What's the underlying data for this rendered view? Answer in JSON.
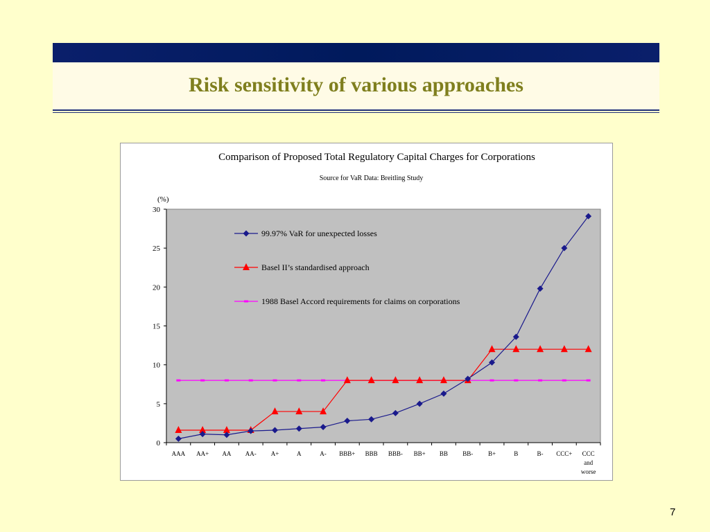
{
  "slide": {
    "title": "Risk sensitivity of various approaches",
    "page_number": "7"
  },
  "colors": {
    "header_bar": "#0a1f6b",
    "title_text": "#7f7f1e",
    "background": "#ffffcc",
    "plot_area": "#c0c0c0"
  },
  "chart_data": {
    "type": "line",
    "title": "Comparison of Proposed Total Regulatory Capital Charges for Corporations",
    "subtitle": "Source for VaR Data: Breitling Study",
    "ylabel": "(%)",
    "xlabel": "",
    "ylim": [
      0,
      30
    ],
    "yticks": [
      0,
      5,
      10,
      15,
      20,
      25,
      30
    ],
    "grid": false,
    "legend_position": "top-left inside plot",
    "categories": [
      "AAA",
      "AA+",
      "AA",
      "AA-",
      "A+",
      "A",
      "A-",
      "BBB+",
      "BBB",
      "BBB-",
      "BB+",
      "BB",
      "BB-",
      "B+",
      "B",
      "B-",
      "CCC+",
      "CCC and worse"
    ],
    "series": [
      {
        "name": "99.97% VaR for unexpected losses",
        "color": "#1a1a8c",
        "marker": "diamond",
        "values": [
          0.5,
          1.1,
          1.0,
          1.5,
          1.6,
          1.8,
          2.0,
          2.8,
          3.0,
          3.8,
          5.0,
          6.3,
          8.2,
          10.3,
          13.6,
          19.8,
          25.0,
          29.1
        ]
      },
      {
        "name": "Basel II’s standardised approach",
        "color": "#ff0000",
        "marker": "triangle",
        "values": [
          1.6,
          1.6,
          1.6,
          1.6,
          4.0,
          4.0,
          4.0,
          8.0,
          8.0,
          8.0,
          8.0,
          8.0,
          8.0,
          12.0,
          12.0,
          12.0,
          12.0,
          12.0
        ]
      },
      {
        "name": "1988 Basel Accord requirements for claims on corporations",
        "color": "#ff00ff",
        "marker": "square",
        "values": [
          8,
          8,
          8,
          8,
          8,
          8,
          8,
          8,
          8,
          8,
          8,
          8,
          8,
          8,
          8,
          8,
          8,
          8
        ]
      }
    ]
  }
}
